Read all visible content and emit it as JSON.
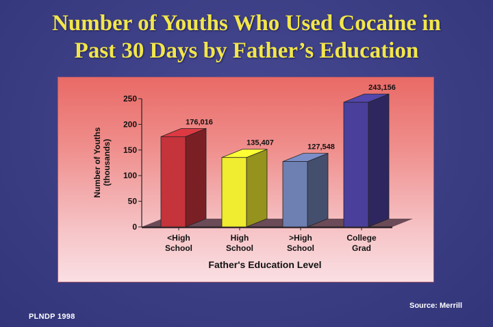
{
  "title": {
    "line1": "Number of Youths Who Used Cocaine in",
    "line2": "Past 30 Days by Father’s Education"
  },
  "footer": {
    "left": "PLNDP 1998",
    "right": "Source: Merrill"
  },
  "colors": {
    "background": "#3d3f86",
    "title": "#f2e64a",
    "panel_top": "#e96a66",
    "panel_bottom": "#fadfe3"
  },
  "chart_data": {
    "type": "bar",
    "title": "",
    "xlabel": "Father's Education Level",
    "ylabel": [
      "Number of Youths",
      "(thousands)"
    ],
    "ylim": [
      0,
      250
    ],
    "yticks": [
      0,
      50,
      100,
      150,
      200,
      250
    ],
    "categories": [
      [
        "<High",
        "School"
      ],
      [
        "High",
        "School"
      ],
      [
        ">High",
        "School"
      ],
      [
        "College",
        "Grad"
      ]
    ],
    "values": [
      176.016,
      135.407,
      127.548,
      243.156
    ],
    "value_labels": [
      "176,016",
      "135,407",
      "127,548",
      "243,156"
    ],
    "bar_colors": [
      "#c5333b",
      "#f0ec2f",
      "#6e7fb2",
      "#4a3f9a"
    ],
    "floor_color": "#6b4b57",
    "three_d": true,
    "grid": false,
    "legend": "none"
  }
}
